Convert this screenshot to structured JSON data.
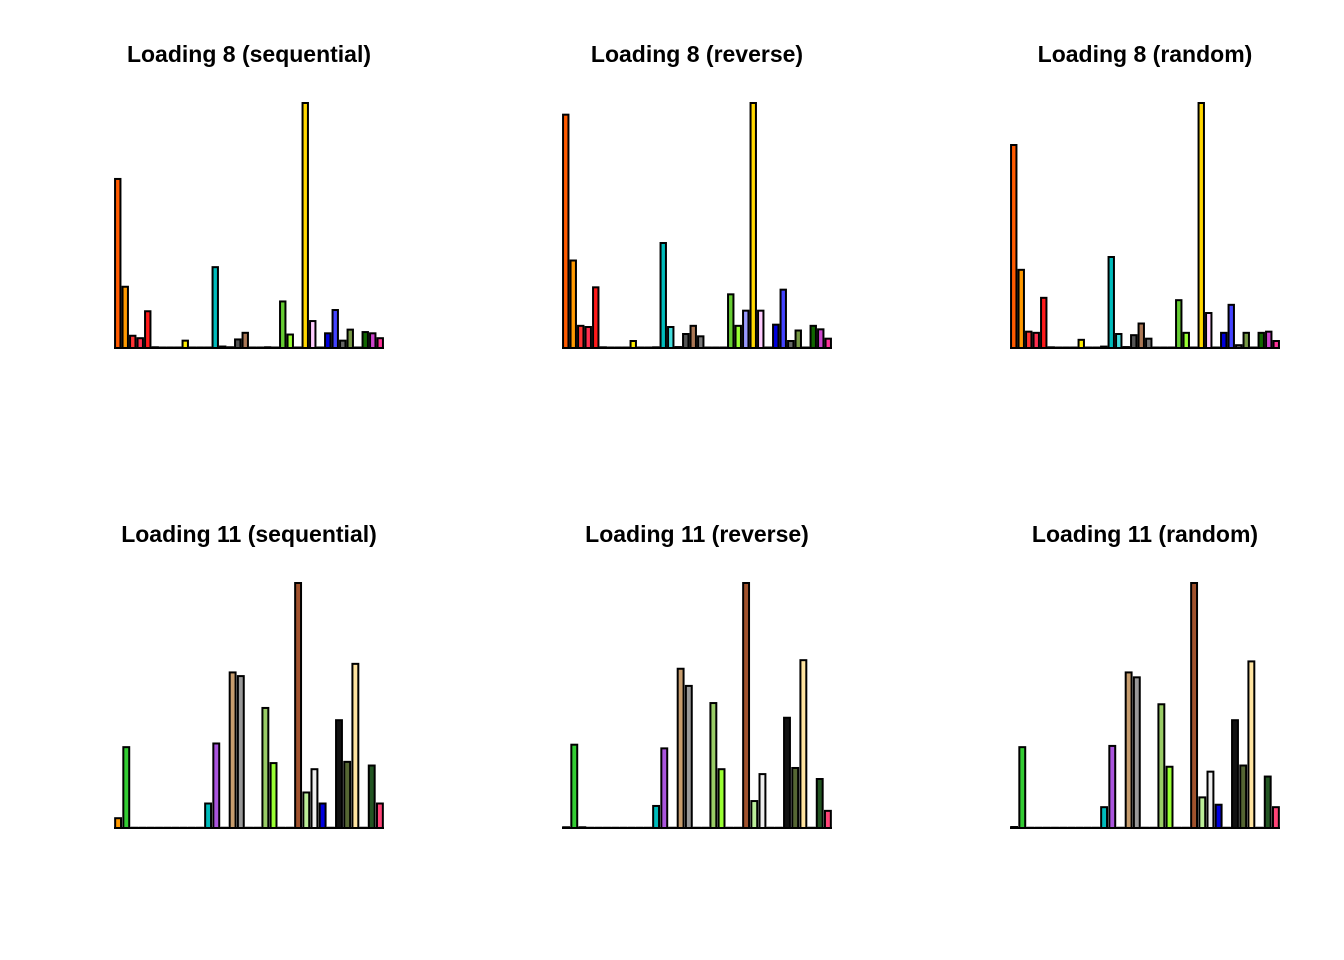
{
  "colors": {
    "bar_outline": "#000000",
    "background": "#ffffff",
    "palette_8": [
      "#ff5a00",
      "#ff9900",
      "#ff3333",
      "#ff2f4f",
      "#ff1a1a",
      "#666666",
      "#777777",
      "#888888",
      "#999999",
      "#ffee00",
      "#aaaaaa",
      "#bbbbbb",
      "#cccccc",
      "#00bbbb",
      "#44dddd",
      "#bbeeff",
      "#555555",
      "#aa7755",
      "#777777",
      "#bb9988",
      "#9933dd",
      "#aaaaaa",
      "#66cc33",
      "#99ff33",
      "#9999ff",
      "#ffd700",
      "#ffccff",
      "#dddddd",
      "#0000dd",
      "#4444ff",
      "#666666",
      "#779944",
      "#888888",
      "#116600",
      "#cc44cc",
      "#ff3399"
    ],
    "palette_11": [
      "#ff9900",
      "#33cc33",
      "#999999",
      "#777777",
      "#666666",
      "#888888",
      "#aaaaaa",
      "#bbbbbb",
      "#cccccc",
      "#dddddd",
      "#777777",
      "#00bbbb",
      "#aa55dd",
      "#999999",
      "#c69c6d",
      "#999999",
      "#3d1a00",
      "#999999",
      "#99cc66",
      "#99ff33",
      "#999999",
      "#999999",
      "#a0522d",
      "#bbee99",
      "#eeeeee",
      "#0000dd",
      "#999999",
      "#111111",
      "#556633",
      "#ffe4a0",
      "#999999",
      "#225522",
      "#ff4477"
    ]
  },
  "chart_data": [
    {
      "type": "bar",
      "title": "Loading 8 (sequential)",
      "values": [
        0.69,
        0.25,
        0.05,
        0.04,
        0.15,
        0.003,
        0.002,
        0.002,
        0.002,
        0.03,
        0.002,
        0.002,
        0.002,
        0.33,
        0.006,
        0.003,
        0.035,
        0.062,
        0.002,
        0.002,
        0.003,
        0.002,
        0.19,
        0.055,
        0.002,
        1.0,
        0.11,
        0.002,
        0.06,
        0.155,
        0.03,
        0.075,
        0.002,
        0.065,
        0.06,
        0.04
      ],
      "ylim": [
        0,
        1.0
      ]
    },
    {
      "type": "bar",
      "title": "Loading 8 (reverse)",
      "values": [
        1.0,
        0.375,
        0.095,
        0.09,
        0.26,
        0.003,
        0.002,
        0.002,
        0.002,
        0.03,
        0.002,
        0.002,
        0.003,
        0.45,
        0.09,
        0.004,
        0.06,
        0.095,
        0.05,
        0.002,
        0.002,
        0.002,
        0.23,
        0.095,
        0.16,
        1.05,
        0.16,
        0.002,
        0.1,
        0.25,
        0.03,
        0.075,
        0.002,
        0.095,
        0.08,
        0.04
      ],
      "ylim": [
        0,
        1.05
      ]
    },
    {
      "type": "bar",
      "title": "Loading 8 (random)",
      "values": [
        0.87,
        0.335,
        0.07,
        0.065,
        0.215,
        0.003,
        0.002,
        0.002,
        0.002,
        0.035,
        0.002,
        0.002,
        0.006,
        0.39,
        0.06,
        0.004,
        0.055,
        0.105,
        0.04,
        0.002,
        0.002,
        0.002,
        0.205,
        0.065,
        0.002,
        1.05,
        0.15,
        0.002,
        0.065,
        0.185,
        0.012,
        0.065,
        0.002,
        0.065,
        0.07,
        0.03
      ],
      "ylim": [
        0,
        1.05
      ]
    },
    {
      "type": "bar",
      "title": "Loading 11 (sequential)",
      "values": [
        0.04,
        0.33,
        0.001,
        0.001,
        0.001,
        0.001,
        0.001,
        0.001,
        0.001,
        0.001,
        0.001,
        0.1,
        0.345,
        0.001,
        0.635,
        0.62,
        0.001,
        0.001,
        0.49,
        0.265,
        0.001,
        0.001,
        1.0,
        0.145,
        0.24,
        0.1,
        0.001,
        0.44,
        0.27,
        0.67,
        0.001,
        0.255,
        0.1
      ],
      "ylim": [
        0,
        1.0
      ]
    },
    {
      "type": "bar",
      "title": "Loading 11 (reverse)",
      "values": [
        0.003,
        0.34,
        0.003,
        0.001,
        0.001,
        0.001,
        0.001,
        0.001,
        0.001,
        0.001,
        0.001,
        0.09,
        0.325,
        0.001,
        0.65,
        0.58,
        0.001,
        0.001,
        0.51,
        0.24,
        0.001,
        0.001,
        1.0,
        0.11,
        0.22,
        0.001,
        0.001,
        0.45,
        0.245,
        0.685,
        0.001,
        0.2,
        0.07
      ],
      "ylim": [
        0,
        1.0
      ]
    },
    {
      "type": "bar",
      "title": "Loading 11 (random)",
      "values": [
        0.004,
        0.33,
        0.001,
        0.001,
        0.001,
        0.001,
        0.001,
        0.001,
        0.001,
        0.001,
        0.001,
        0.085,
        0.335,
        0.001,
        0.635,
        0.615,
        0.001,
        0.001,
        0.505,
        0.25,
        0.001,
        0.001,
        1.0,
        0.125,
        0.23,
        0.095,
        0.001,
        0.44,
        0.255,
        0.68,
        0.001,
        0.21,
        0.085
      ],
      "ylim": [
        0,
        1.0
      ]
    }
  ]
}
